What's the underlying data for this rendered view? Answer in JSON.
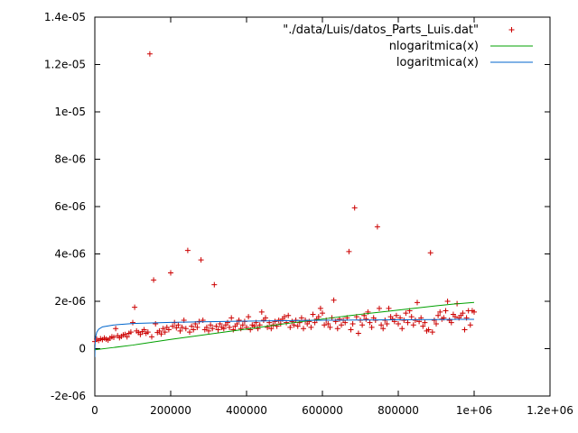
{
  "chart_data": {
    "type": "scatter",
    "xlim": [
      0,
      1200000
    ],
    "ylim": [
      -2e-06,
      1.4e-05
    ],
    "x_ticks": [
      {
        "value": 0,
        "label": "0"
      },
      {
        "value": 200000,
        "label": "200000"
      },
      {
        "value": 400000,
        "label": "400000"
      },
      {
        "value": 600000,
        "label": "600000"
      },
      {
        "value": 800000,
        "label": "800000"
      },
      {
        "value": 1000000,
        "label": "1e+06"
      },
      {
        "value": 1200000,
        "label": "1.2e+06"
      }
    ],
    "y_ticks": [
      {
        "value": -2e-06,
        "label": "-2e-06"
      },
      {
        "value": 0,
        "label": "0"
      },
      {
        "value": 2e-06,
        "label": "2e-06"
      },
      {
        "value": 4e-06,
        "label": "4e-06"
      },
      {
        "value": 6e-06,
        "label": "6e-06"
      },
      {
        "value": 8e-06,
        "label": "8e-06"
      },
      {
        "value": 1e-05,
        "label": "1e-05"
      },
      {
        "value": 1.2e-05,
        "label": "1.2e-05"
      },
      {
        "value": 1.4e-05,
        "label": "1.4e-05"
      }
    ],
    "grid": false,
    "legend_position": "top-right",
    "series": [
      {
        "name": "\"./data/Luis/datos_Parts_Luis.dat\"",
        "kind": "points",
        "marker": "plus",
        "color": "#cc0000",
        "points": [
          [
            0,
            3e-07
          ],
          [
            5000,
            4e-07
          ],
          [
            10000,
            3.5e-07
          ],
          [
            15000,
            4.2e-07
          ],
          [
            20000,
            3.8e-07
          ],
          [
            25000,
            4.5e-07
          ],
          [
            30000,
            4e-07
          ],
          [
            35000,
            3.6e-07
          ],
          [
            40000,
            4.4e-07
          ],
          [
            45000,
            5e-07
          ],
          [
            50000,
            4.8e-07
          ],
          [
            55000,
            8.5e-07
          ],
          [
            60000,
            5.5e-07
          ],
          [
            65000,
            4.6e-07
          ],
          [
            70000,
            5.2e-07
          ],
          [
            75000,
            5.8e-07
          ],
          [
            80000,
            6e-07
          ],
          [
            85000,
            5e-07
          ],
          [
            90000,
            6.5e-07
          ],
          [
            95000,
            7e-07
          ],
          [
            100000,
            1.1e-06
          ],
          [
            105000,
            1.75e-06
          ],
          [
            110000,
            7.5e-07
          ],
          [
            115000,
            6.8e-07
          ],
          [
            120000,
            6e-07
          ],
          [
            125000,
            7.2e-07
          ],
          [
            130000,
            8e-07
          ],
          [
            135000,
            6.5e-07
          ],
          [
            140000,
            7e-07
          ],
          [
            145000,
            1.245e-05
          ],
          [
            150000,
            5e-07
          ],
          [
            155000,
            2.9e-06
          ],
          [
            160000,
            1.05e-06
          ],
          [
            165000,
            6.8e-07
          ],
          [
            170000,
            7.5e-07
          ],
          [
            175000,
            6.2e-07
          ],
          [
            180000,
            8.5e-07
          ],
          [
            185000,
            7e-07
          ],
          [
            190000,
            9e-07
          ],
          [
            195000,
            8e-07
          ],
          [
            200000,
            3.2e-06
          ],
          [
            205000,
            9.5e-07
          ],
          [
            210000,
            1.1e-06
          ],
          [
            215000,
            8.8e-07
          ],
          [
            220000,
            1e-06
          ],
          [
            225000,
            7.5e-07
          ],
          [
            230000,
            9e-07
          ],
          [
            235000,
            1.2e-06
          ],
          [
            240000,
            8.5e-07
          ],
          [
            245000,
            4.15e-06
          ],
          [
            250000,
            7e-07
          ],
          [
            255000,
            9.5e-07
          ],
          [
            260000,
            8e-07
          ],
          [
            265000,
            1.05e-06
          ],
          [
            270000,
            9e-07
          ],
          [
            275000,
            1.15e-06
          ],
          [
            280000,
            3.75e-06
          ],
          [
            285000,
            1.2e-06
          ],
          [
            290000,
            8e-07
          ],
          [
            295000,
            9e-07
          ],
          [
            300000,
            7.5e-07
          ],
          [
            305000,
            1e-06
          ],
          [
            310000,
            8.5e-07
          ],
          [
            315000,
            2.7e-06
          ],
          [
            320000,
            9.5e-07
          ],
          [
            325000,
            8e-07
          ],
          [
            330000,
            1.05e-06
          ],
          [
            335000,
            9e-07
          ],
          [
            340000,
            8.5e-07
          ],
          [
            345000,
            1e-06
          ],
          [
            350000,
            1.1e-06
          ],
          [
            355000,
            9e-07
          ],
          [
            360000,
            1.3e-06
          ],
          [
            365000,
            8e-07
          ],
          [
            370000,
            9.5e-07
          ],
          [
            375000,
            1.05e-06
          ],
          [
            380000,
            1.2e-06
          ],
          [
            385000,
            8.5e-07
          ],
          [
            390000,
            1e-06
          ],
          [
            395000,
            1.15e-06
          ],
          [
            400000,
            9e-07
          ],
          [
            405000,
            1.35e-06
          ],
          [
            410000,
            8e-07
          ],
          [
            415000,
            1e-06
          ],
          [
            420000,
            9.5e-07
          ],
          [
            425000,
            1.1e-06
          ],
          [
            430000,
            8.5e-07
          ],
          [
            435000,
            1e-06
          ],
          [
            440000,
            1.55e-06
          ],
          [
            445000,
            1.2e-06
          ],
          [
            450000,
            1.3e-06
          ],
          [
            455000,
            9e-07
          ],
          [
            460000,
            1.1e-06
          ],
          [
            465000,
            8.5e-07
          ],
          [
            470000,
            1e-06
          ],
          [
            475000,
            1.15e-06
          ],
          [
            480000,
            9.5e-07
          ],
          [
            485000,
            1.2e-06
          ],
          [
            490000,
            1.05e-06
          ],
          [
            495000,
            1.25e-06
          ],
          [
            500000,
            1.35e-06
          ],
          [
            505000,
            1.1e-06
          ],
          [
            510000,
            1.4e-06
          ],
          [
            515000,
            9e-07
          ],
          [
            520000,
            1.15e-06
          ],
          [
            525000,
            1e-06
          ],
          [
            530000,
            1.2e-06
          ],
          [
            535000,
            9.5e-07
          ],
          [
            540000,
            1.1e-06
          ],
          [
            545000,
            1.3e-06
          ],
          [
            550000,
            8.5e-07
          ],
          [
            555000,
            1.2e-06
          ],
          [
            560000,
            1.05e-06
          ],
          [
            565000,
            1.15e-06
          ],
          [
            570000,
            9e-07
          ],
          [
            575000,
            1.45e-06
          ],
          [
            580000,
            1.1e-06
          ],
          [
            585000,
            1.25e-06
          ],
          [
            590000,
            1.35e-06
          ],
          [
            595000,
            1.7e-06
          ],
          [
            600000,
            1.5e-06
          ],
          [
            605000,
            1e-06
          ],
          [
            610000,
            1.2e-06
          ],
          [
            615000,
            1.05e-06
          ],
          [
            620000,
            9e-07
          ],
          [
            625000,
            1.3e-06
          ],
          [
            630000,
            2.05e-06
          ],
          [
            635000,
            1.15e-06
          ],
          [
            640000,
            8.5e-07
          ],
          [
            645000,
            1.25e-06
          ],
          [
            650000,
            1e-06
          ],
          [
            655000,
            1.2e-06
          ],
          [
            660000,
            1.1e-06
          ],
          [
            665000,
            1.3e-06
          ],
          [
            670000,
            4.1e-06
          ],
          [
            675000,
            8e-07
          ],
          [
            680000,
            1.05e-06
          ],
          [
            685000,
            5.95e-06
          ],
          [
            690000,
            1.35e-06
          ],
          [
            695000,
            6.5e-07
          ],
          [
            700000,
            1.2e-06
          ],
          [
            705000,
            1e-06
          ],
          [
            710000,
            1.4e-06
          ],
          [
            715000,
            1.25e-06
          ],
          [
            720000,
            1.55e-06
          ],
          [
            725000,
            1.1e-06
          ],
          [
            730000,
            9e-07
          ],
          [
            735000,
            1.3e-06
          ],
          [
            740000,
            1.2e-06
          ],
          [
            745000,
            5.15e-06
          ],
          [
            750000,
            1.7e-06
          ],
          [
            755000,
            1e-06
          ],
          [
            760000,
            8.5e-07
          ],
          [
            765000,
            1.2e-06
          ],
          [
            770000,
            1.05e-06
          ],
          [
            775000,
            1.7e-06
          ],
          [
            780000,
            1.35e-06
          ],
          [
            785000,
            1.25e-06
          ],
          [
            790000,
            1.15e-06
          ],
          [
            795000,
            1.4e-06
          ],
          [
            800000,
            1.05e-06
          ],
          [
            805000,
            1.3e-06
          ],
          [
            810000,
            8.5e-07
          ],
          [
            815000,
            1.2e-06
          ],
          [
            820000,
            1.5e-06
          ],
          [
            825000,
            1.1e-06
          ],
          [
            830000,
            1.6e-06
          ],
          [
            835000,
            1.35e-06
          ],
          [
            840000,
            1e-06
          ],
          [
            845000,
            1.2e-06
          ],
          [
            850000,
            1.95e-06
          ],
          [
            855000,
            1.15e-06
          ],
          [
            860000,
            1.3e-06
          ],
          [
            865000,
            9.5e-07
          ],
          [
            870000,
            1.1e-06
          ],
          [
            875000,
            7.5e-07
          ],
          [
            880000,
            8e-07
          ],
          [
            885000,
            4.05e-06
          ],
          [
            890000,
            7e-07
          ],
          [
            895000,
            1.2e-06
          ],
          [
            900000,
            1.05e-06
          ],
          [
            905000,
            1.4e-06
          ],
          [
            910000,
            1.55e-06
          ],
          [
            915000,
            1.25e-06
          ],
          [
            920000,
            1.3e-06
          ],
          [
            925000,
            1.6e-06
          ],
          [
            930000,
            2e-06
          ],
          [
            935000,
            1.2e-06
          ],
          [
            940000,
            1.1e-06
          ],
          [
            945000,
            1.45e-06
          ],
          [
            950000,
            1.35e-06
          ],
          [
            955000,
            1.9e-06
          ],
          [
            960000,
            1.3e-06
          ],
          [
            965000,
            1.4e-06
          ],
          [
            970000,
            1.5e-06
          ],
          [
            975000,
            8e-07
          ],
          [
            980000,
            1.3e-06
          ],
          [
            985000,
            1.6e-06
          ],
          [
            990000,
            1e-06
          ],
          [
            995000,
            1.6e-06
          ],
          [
            1000000,
            1.55e-06
          ]
        ]
      },
      {
        "name": "nlogaritmica(x)",
        "kind": "line",
        "color": "#00a000",
        "points": [
          [
            0,
            -5e-08
          ],
          [
            50000,
            5e-08
          ],
          [
            100000,
            1.5e-07
          ],
          [
            150000,
            2.7e-07
          ],
          [
            200000,
            3.9e-07
          ],
          [
            250000,
            5e-07
          ],
          [
            300000,
            6.1e-07
          ],
          [
            350000,
            7.2e-07
          ],
          [
            400000,
            8.3e-07
          ],
          [
            450000,
            9.4e-07
          ],
          [
            500000,
            1.05e-06
          ],
          [
            550000,
            1.15e-06
          ],
          [
            600000,
            1.25e-06
          ],
          [
            650000,
            1.35e-06
          ],
          [
            700000,
            1.45e-06
          ],
          [
            750000,
            1.54e-06
          ],
          [
            800000,
            1.63e-06
          ],
          [
            850000,
            1.72e-06
          ],
          [
            900000,
            1.81e-06
          ],
          [
            950000,
            1.89e-06
          ],
          [
            1000000,
            1.95e-06
          ]
        ]
      },
      {
        "name": "logaritmica(x)",
        "kind": "line",
        "color": "#0066cc",
        "points": [
          [
            100,
            -3.5e-07
          ],
          [
            500,
            1e-07
          ],
          [
            1000,
            3e-07
          ],
          [
            2000,
            4.8e-07
          ],
          [
            5000,
            6.9e-07
          ],
          [
            10000,
            8.2e-07
          ],
          [
            20000,
            9.2e-07
          ],
          [
            50000,
            1e-06
          ],
          [
            100000,
            1.06e-06
          ],
          [
            200000,
            1.11e-06
          ],
          [
            300000,
            1.14e-06
          ],
          [
            400000,
            1.16e-06
          ],
          [
            500000,
            1.18e-06
          ],
          [
            600000,
            1.2e-06
          ],
          [
            700000,
            1.21e-06
          ],
          [
            800000,
            1.22e-06
          ],
          [
            900000,
            1.23e-06
          ],
          [
            1000000,
            1.24e-06
          ]
        ]
      }
    ]
  }
}
